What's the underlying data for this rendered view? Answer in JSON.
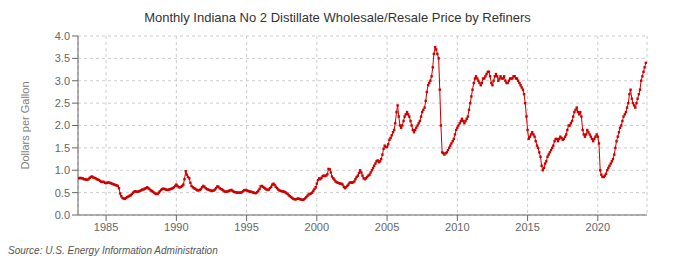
{
  "chart_data": {
    "type": "line",
    "title": "Monthly Indiana No 2 Distillate Wholesale/Resale Price by Refiners",
    "ylabel": "Dollars per Gallon",
    "annotations": [
      "Source: U.S. Energy Information Administration"
    ],
    "color": "#cc0000",
    "marker": "square",
    "line_style": "solid",
    "grid": true,
    "xlim": [
      1983,
      2023.5
    ],
    "ylim": [
      0.0,
      4.0
    ],
    "xticks": [
      1985,
      1990,
      1995,
      2000,
      2005,
      2010,
      2015,
      2020
    ],
    "yticks": [
      {
        "value": 0.0,
        "label": "0.0"
      },
      0.5,
      {
        "value": 1.0,
        "label": "1.0"
      },
      1.5,
      {
        "value": 2.0,
        "label": "2.0"
      },
      2.5,
      {
        "value": 3.0,
        "label": "3.0"
      },
      3.5,
      {
        "value": 4.0,
        "label": "4.0"
      }
    ],
    "x": [
      1983.08,
      1983.17,
      1983.25,
      1983.33,
      1983.42,
      1983.5,
      1983.58,
      1983.67,
      1983.75,
      1983.83,
      1983.92,
      1984.0,
      1984.08,
      1984.17,
      1984.25,
      1984.33,
      1984.42,
      1984.5,
      1984.58,
      1984.67,
      1984.75,
      1984.83,
      1984.92,
      1985.0,
      1985.08,
      1985.17,
      1985.25,
      1985.33,
      1985.42,
      1985.5,
      1985.58,
      1985.67,
      1985.75,
      1985.83,
      1985.92,
      1986.0,
      1986.08,
      1986.17,
      1986.25,
      1986.33,
      1986.42,
      1986.5,
      1986.58,
      1986.67,
      1986.75,
      1986.83,
      1986.92,
      1987.0,
      1987.08,
      1987.17,
      1987.25,
      1987.33,
      1987.42,
      1987.5,
      1987.58,
      1987.67,
      1987.75,
      1987.83,
      1987.92,
      1988.0,
      1988.08,
      1988.17,
      1988.25,
      1988.33,
      1988.42,
      1988.5,
      1988.58,
      1988.67,
      1988.75,
      1988.83,
      1988.92,
      1989.0,
      1989.08,
      1989.17,
      1989.25,
      1989.33,
      1989.42,
      1989.5,
      1989.58,
      1989.67,
      1989.75,
      1989.83,
      1989.92,
      1990.0,
      1990.08,
      1990.17,
      1990.25,
      1990.33,
      1990.42,
      1990.5,
      1990.58,
      1990.67,
      1990.75,
      1990.83,
      1990.92,
      1991.0,
      1991.08,
      1991.17,
      1991.25,
      1991.33,
      1991.42,
      1991.5,
      1991.58,
      1991.67,
      1991.75,
      1991.83,
      1991.92,
      1992.0,
      1992.08,
      1992.17,
      1992.25,
      1992.33,
      1992.42,
      1992.5,
      1992.58,
      1992.67,
      1992.75,
      1992.83,
      1992.92,
      1993.0,
      1993.08,
      1993.17,
      1993.25,
      1993.33,
      1993.42,
      1993.5,
      1993.58,
      1993.67,
      1993.75,
      1993.83,
      1993.92,
      1994.0,
      1994.08,
      1994.17,
      1994.25,
      1994.33,
      1994.42,
      1994.5,
      1994.58,
      1994.67,
      1994.75,
      1994.83,
      1994.92,
      1995.0,
      1995.08,
      1995.17,
      1995.25,
      1995.33,
      1995.42,
      1995.5,
      1995.58,
      1995.67,
      1995.75,
      1995.83,
      1995.92,
      1996.0,
      1996.08,
      1996.17,
      1996.25,
      1996.33,
      1996.42,
      1996.5,
      1996.58,
      1996.67,
      1996.75,
      1996.83,
      1996.92,
      1997.0,
      1997.08,
      1997.17,
      1997.25,
      1997.33,
      1997.42,
      1997.5,
      1997.58,
      1997.67,
      1997.75,
      1997.83,
      1997.92,
      1998.0,
      1998.08,
      1998.17,
      1998.25,
      1998.33,
      1998.42,
      1998.5,
      1998.58,
      1998.67,
      1998.75,
      1998.83,
      1998.92,
      1999.0,
      1999.08,
      1999.17,
      1999.25,
      1999.33,
      1999.42,
      1999.5,
      1999.58,
      1999.67,
      1999.75,
      1999.83,
      1999.92,
      2000.0,
      2000.08,
      2000.17,
      2000.25,
      2000.33,
      2000.42,
      2000.5,
      2000.58,
      2000.67,
      2000.75,
      2000.83,
      2000.92,
      2001.0,
      2001.08,
      2001.17,
      2001.25,
      2001.33,
      2001.42,
      2001.5,
      2001.58,
      2001.67,
      2001.75,
      2001.83,
      2001.92,
      2002.0,
      2002.08,
      2002.17,
      2002.25,
      2002.33,
      2002.42,
      2002.5,
      2002.58,
      2002.67,
      2002.75,
      2002.83,
      2002.92,
      2003.0,
      2003.08,
      2003.17,
      2003.25,
      2003.33,
      2003.42,
      2003.5,
      2003.58,
      2003.67,
      2003.75,
      2003.83,
      2003.92,
      2004.0,
      2004.08,
      2004.17,
      2004.25,
      2004.33,
      2004.42,
      2004.5,
      2004.58,
      2004.67,
      2004.75,
      2004.83,
      2004.92,
      2005.0,
      2005.08,
      2005.17,
      2005.25,
      2005.33,
      2005.42,
      2005.5,
      2005.58,
      2005.67,
      2005.75,
      2005.83,
      2005.92,
      2006.0,
      2006.08,
      2006.17,
      2006.25,
      2006.33,
      2006.42,
      2006.5,
      2006.58,
      2006.67,
      2006.75,
      2006.83,
      2006.92,
      2007.0,
      2007.08,
      2007.17,
      2007.25,
      2007.33,
      2007.42,
      2007.5,
      2007.58,
      2007.67,
      2007.75,
      2007.83,
      2007.92,
      2008.0,
      2008.08,
      2008.17,
      2008.25,
      2008.33,
      2008.42,
      2008.5,
      2008.58,
      2008.67,
      2008.75,
      2008.83,
      2008.92,
      2009.0,
      2009.08,
      2009.17,
      2009.25,
      2009.33,
      2009.42,
      2009.5,
      2009.58,
      2009.67,
      2009.75,
      2009.83,
      2009.92,
      2010.0,
      2010.08,
      2010.17,
      2010.25,
      2010.33,
      2010.42,
      2010.5,
      2010.58,
      2010.67,
      2010.75,
      2010.83,
      2010.92,
      2011.0,
      2011.08,
      2011.17,
      2011.25,
      2011.33,
      2011.42,
      2011.5,
      2011.58,
      2011.67,
      2011.75,
      2011.83,
      2011.92,
      2012.0,
      2012.08,
      2012.17,
      2012.25,
      2012.33,
      2012.42,
      2012.5,
      2012.58,
      2012.67,
      2012.75,
      2012.83,
      2012.92,
      2013.0,
      2013.08,
      2013.17,
      2013.25,
      2013.33,
      2013.42,
      2013.5,
      2013.58,
      2013.67,
      2013.75,
      2013.83,
      2013.92,
      2014.0,
      2014.08,
      2014.17,
      2014.25,
      2014.33,
      2014.42,
      2014.5,
      2014.58,
      2014.67,
      2014.75,
      2014.83,
      2014.92,
      2015.0,
      2015.08,
      2015.17,
      2015.25,
      2015.33,
      2015.42,
      2015.5,
      2015.58,
      2015.67,
      2015.75,
      2015.83,
      2015.92,
      2016.0,
      2016.08,
      2016.17,
      2016.25,
      2016.33,
      2016.42,
      2016.5,
      2016.58,
      2016.67,
      2016.75,
      2016.83,
      2016.92,
      2017.0,
      2017.08,
      2017.17,
      2017.25,
      2017.33,
      2017.42,
      2017.5,
      2017.58,
      2017.67,
      2017.75,
      2017.83,
      2017.92,
      2018.0,
      2018.08,
      2018.17,
      2018.25,
      2018.33,
      2018.42,
      2018.5,
      2018.58,
      2018.67,
      2018.75,
      2018.83,
      2018.92,
      2019.0,
      2019.08,
      2019.17,
      2019.25,
      2019.33,
      2019.42,
      2019.5,
      2019.58,
      2019.67,
      2019.75,
      2019.83,
      2019.92,
      2020.0,
      2020.08,
      2020.17,
      2020.25,
      2020.33,
      2020.42,
      2020.5,
      2020.58,
      2020.67,
      2020.75,
      2020.83,
      2020.92,
      2021.0,
      2021.08,
      2021.17,
      2021.25,
      2021.33,
      2021.42,
      2021.5,
      2021.58,
      2021.67,
      2021.75,
      2021.83,
      2021.92,
      2022.0,
      2022.08,
      2022.17,
      2022.25,
      2022.33,
      2022.42,
      2022.5,
      2022.58,
      2022.67,
      2022.75,
      2022.83,
      2022.92,
      2023.0,
      2023.08,
      2023.17,
      2023.25,
      2023.33,
      2023.42
    ],
    "values": [
      0.82,
      0.83,
      0.82,
      0.82,
      0.8,
      0.8,
      0.79,
      0.79,
      0.8,
      0.83,
      0.85,
      0.86,
      0.84,
      0.83,
      0.82,
      0.8,
      0.79,
      0.78,
      0.76,
      0.74,
      0.74,
      0.74,
      0.72,
      0.71,
      0.72,
      0.73,
      0.72,
      0.71,
      0.7,
      0.69,
      0.68,
      0.67,
      0.66,
      0.65,
      0.6,
      0.48,
      0.42,
      0.38,
      0.37,
      0.36,
      0.38,
      0.4,
      0.41,
      0.43,
      0.44,
      0.47,
      0.5,
      0.52,
      0.53,
      0.52,
      0.52,
      0.53,
      0.54,
      0.55,
      0.57,
      0.57,
      0.59,
      0.6,
      0.62,
      0.6,
      0.58,
      0.55,
      0.54,
      0.52,
      0.5,
      0.48,
      0.47,
      0.47,
      0.5,
      0.53,
      0.56,
      0.58,
      0.59,
      0.58,
      0.57,
      0.56,
      0.56,
      0.57,
      0.58,
      0.59,
      0.6,
      0.62,
      0.65,
      0.68,
      0.65,
      0.62,
      0.62,
      0.63,
      0.65,
      0.68,
      0.8,
      0.98,
      0.9,
      0.85,
      0.82,
      0.72,
      0.65,
      0.62,
      0.6,
      0.59,
      0.57,
      0.55,
      0.55,
      0.56,
      0.58,
      0.62,
      0.65,
      0.63,
      0.6,
      0.58,
      0.57,
      0.56,
      0.55,
      0.54,
      0.54,
      0.55,
      0.57,
      0.6,
      0.64,
      0.63,
      0.6,
      0.58,
      0.57,
      0.55,
      0.53,
      0.52,
      0.52,
      0.53,
      0.54,
      0.55,
      0.56,
      0.54,
      0.52,
      0.51,
      0.51,
      0.5,
      0.5,
      0.5,
      0.5,
      0.51,
      0.53,
      0.55,
      0.56,
      0.55,
      0.54,
      0.53,
      0.52,
      0.52,
      0.51,
      0.5,
      0.49,
      0.49,
      0.51,
      0.54,
      0.58,
      0.64,
      0.65,
      0.63,
      0.61,
      0.59,
      0.57,
      0.56,
      0.57,
      0.6,
      0.63,
      0.68,
      0.7,
      0.67,
      0.63,
      0.6,
      0.57,
      0.55,
      0.54,
      0.53,
      0.53,
      0.52,
      0.51,
      0.49,
      0.47,
      0.44,
      0.42,
      0.4,
      0.38,
      0.36,
      0.35,
      0.35,
      0.36,
      0.37,
      0.36,
      0.35,
      0.34,
      0.34,
      0.35,
      0.37,
      0.4,
      0.43,
      0.46,
      0.47,
      0.48,
      0.5,
      0.54,
      0.58,
      0.62,
      0.7,
      0.78,
      0.82,
      0.8,
      0.83,
      0.87,
      0.88,
      0.87,
      0.88,
      0.91,
      1.03,
      1.02,
      0.95,
      0.86,
      0.82,
      0.79,
      0.75,
      0.73,
      0.72,
      0.71,
      0.7,
      0.7,
      0.68,
      0.63,
      0.6,
      0.62,
      0.65,
      0.68,
      0.72,
      0.73,
      0.72,
      0.73,
      0.75,
      0.8,
      0.85,
      0.88,
      0.94,
      1.0,
      0.95,
      0.88,
      0.82,
      0.8,
      0.82,
      0.85,
      0.88,
      0.9,
      0.95,
      1.0,
      1.05,
      1.1,
      1.15,
      1.2,
      1.22,
      1.18,
      1.2,
      1.25,
      1.35,
      1.48,
      1.55,
      1.52,
      1.52,
      1.58,
      1.68,
      1.72,
      1.78,
      1.85,
      1.9,
      2.05,
      2.3,
      2.45,
      2.2,
      2.0,
      1.95,
      2.0,
      2.1,
      2.2,
      2.25,
      2.3,
      2.25,
      2.2,
      2.1,
      2.0,
      1.9,
      1.85,
      1.9,
      1.95,
      2.0,
      2.05,
      2.1,
      2.2,
      2.3,
      2.35,
      2.4,
      2.55,
      2.75,
      2.9,
      2.95,
      3.0,
      3.1,
      3.3,
      3.6,
      3.75,
      3.7,
      3.6,
      3.5,
      2.8,
      2.0,
      1.4,
      1.38,
      1.35,
      1.38,
      1.4,
      1.45,
      1.5,
      1.55,
      1.6,
      1.65,
      1.7,
      1.8,
      1.9,
      1.95,
      2.0,
      2.05,
      2.1,
      2.15,
      2.1,
      2.05,
      2.1,
      2.15,
      2.2,
      2.35,
      2.5,
      2.65,
      2.8,
      2.95,
      3.05,
      3.1,
      3.05,
      3.0,
      2.95,
      2.9,
      2.95,
      3.05,
      3.05,
      3.1,
      3.15,
      3.2,
      3.2,
      3.1,
      2.95,
      2.9,
      3.0,
      3.1,
      3.15,
      3.1,
      3.0,
      3.05,
      3.1,
      3.05,
      3.05,
      3.1,
      3.0,
      2.95,
      2.95,
      3.0,
      3.05,
      3.05,
      3.05,
      3.1,
      3.1,
      3.05,
      3.05,
      3.0,
      2.95,
      2.9,
      2.85,
      2.8,
      2.7,
      2.5,
      2.2,
      1.9,
      1.7,
      1.75,
      1.8,
      1.85,
      1.8,
      1.75,
      1.65,
      1.55,
      1.5,
      1.4,
      1.3,
      1.1,
      1.0,
      1.05,
      1.15,
      1.2,
      1.3,
      1.35,
      1.4,
      1.45,
      1.5,
      1.55,
      1.65,
      1.7,
      1.7,
      1.65,
      1.7,
      1.75,
      1.72,
      1.68,
      1.7,
      1.75,
      1.8,
      1.9,
      2.0,
      2.0,
      2.05,
      2.1,
      2.2,
      2.3,
      2.35,
      2.4,
      2.3,
      2.25,
      2.3,
      2.2,
      1.9,
      1.8,
      1.75,
      1.8,
      1.9,
      1.85,
      1.8,
      1.75,
      1.7,
      1.65,
      1.7,
      1.75,
      1.8,
      1.75,
      1.6,
      1.0,
      0.9,
      0.85,
      0.85,
      0.88,
      0.92,
      1.0,
      1.05,
      1.1,
      1.15,
      1.2,
      1.25,
      1.35,
      1.5,
      1.65,
      1.75,
      1.85,
      1.95,
      2.0,
      2.1,
      2.2,
      2.25,
      2.3,
      2.4,
      2.5,
      2.7,
      2.8,
      2.6,
      2.5,
      2.45,
      2.4,
      2.5,
      2.6,
      2.7,
      2.8,
      3.0,
      3.1,
      3.2,
      3.3,
      3.4
    ]
  }
}
